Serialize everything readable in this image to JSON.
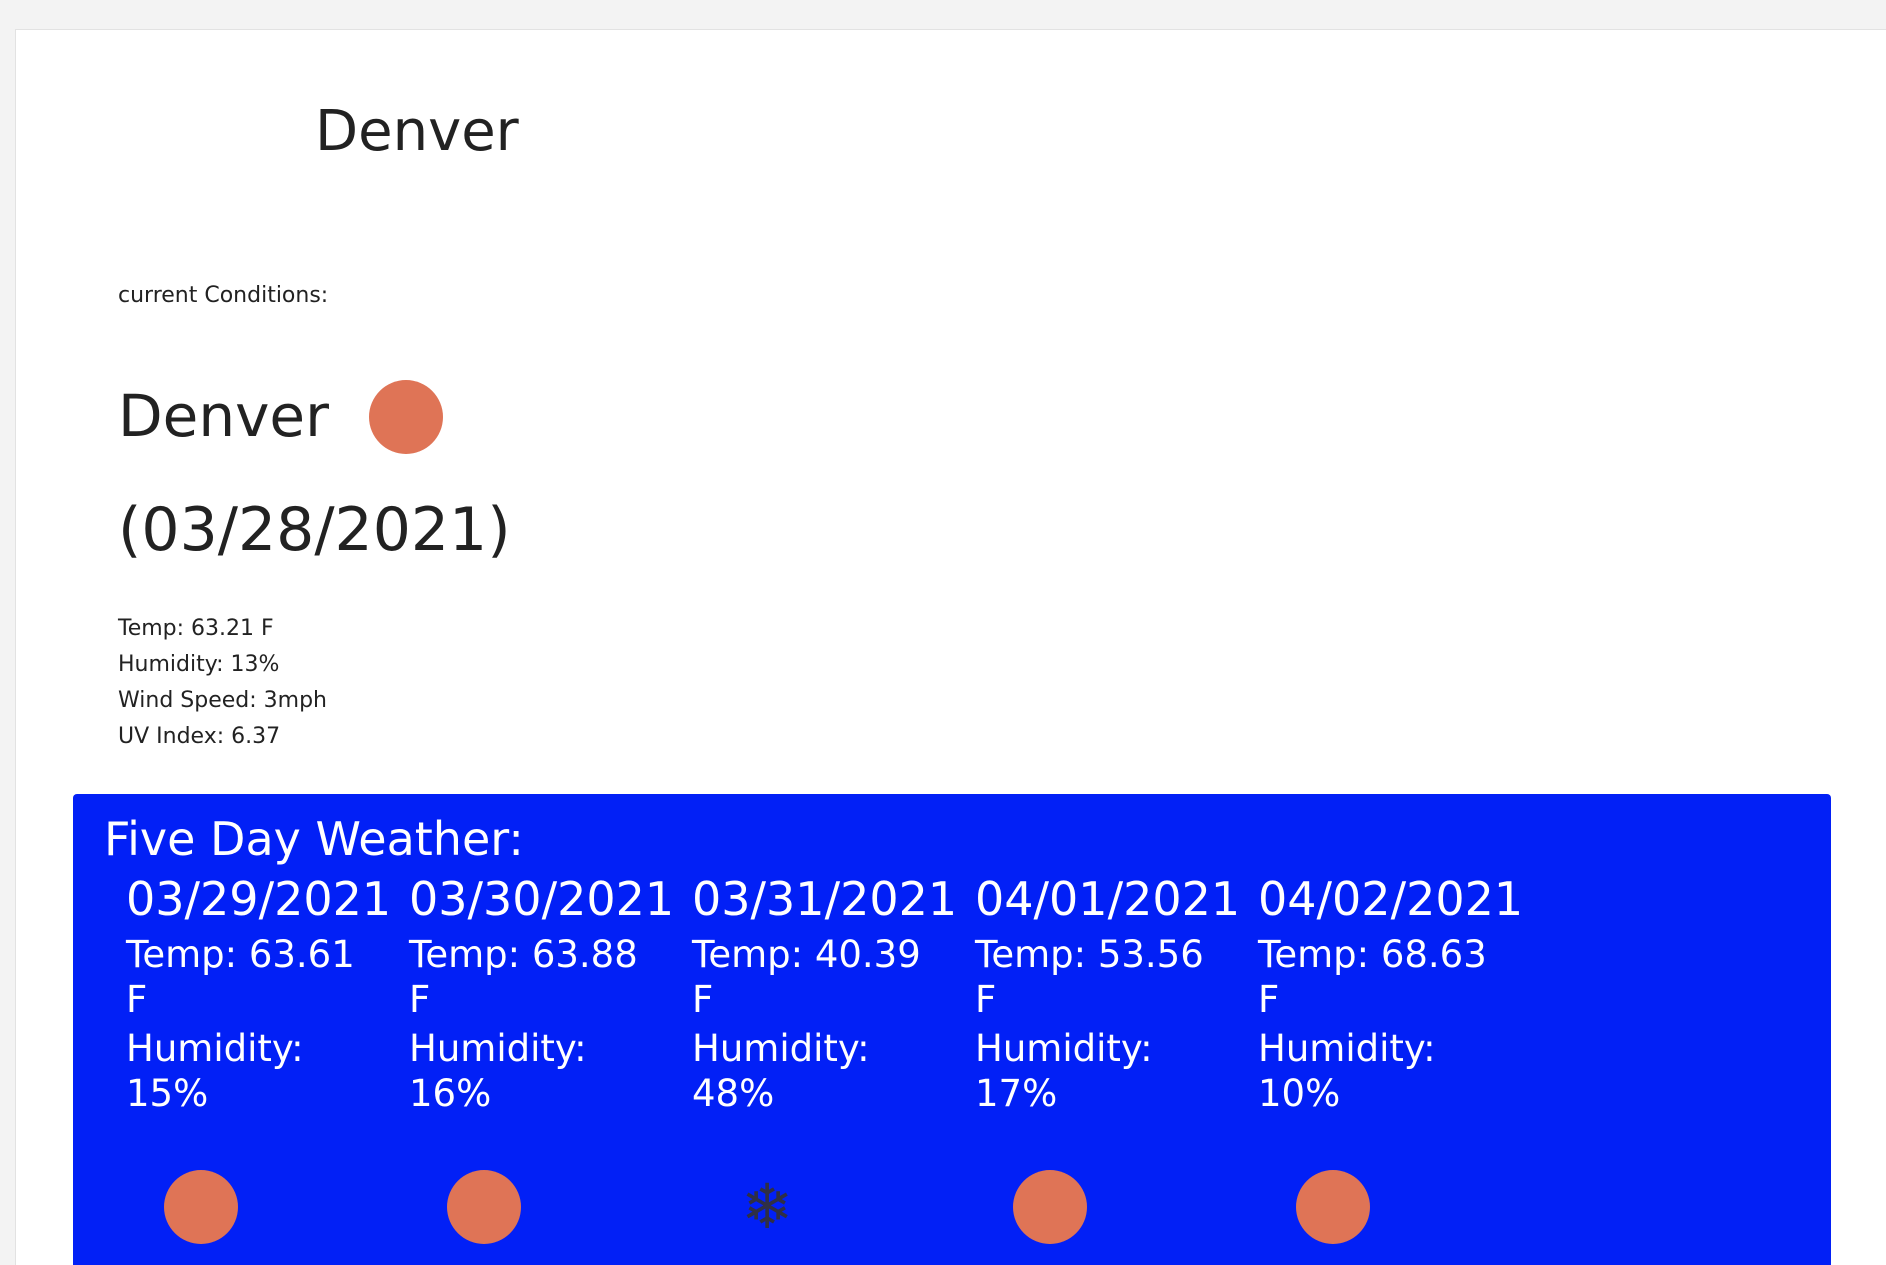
{
  "header": {
    "city": "Denver"
  },
  "current": {
    "label": "current Conditions:",
    "city": "Denver",
    "icon": "sun-icon",
    "date": "(03/28/2021)",
    "temp": "Temp: 63.21 F",
    "humidity": "Humidity: 13%",
    "wind": "Wind Speed: 3mph",
    "uv": "UV Index: 6.37"
  },
  "forecast": {
    "title": "Five Day Weather:",
    "background_color": "#0220f6",
    "days": [
      {
        "date": "03/29/2021",
        "temp": "Temp: 63.61 F",
        "humidity": "Humidity: 15%",
        "icon": "sun-icon"
      },
      {
        "date": "03/30/2021",
        "temp": "Temp: 63.88 F",
        "humidity": "Humidity: 16%",
        "icon": "sun-icon"
      },
      {
        "date": "03/31/2021",
        "temp": "Temp: 40.39 F",
        "humidity": "Humidity: 48%",
        "icon": "snowflake-icon"
      },
      {
        "date": "04/01/2021",
        "temp": "Temp: 53.56 F",
        "humidity": "Humidity: 17%",
        "icon": "sun-icon"
      },
      {
        "date": "04/02/2021",
        "temp": "Temp: 68.63 F",
        "humidity": "Humidity: 10%",
        "icon": "sun-icon"
      }
    ]
  },
  "colors": {
    "sun": "#df7456",
    "snow": "#2f2f45"
  }
}
